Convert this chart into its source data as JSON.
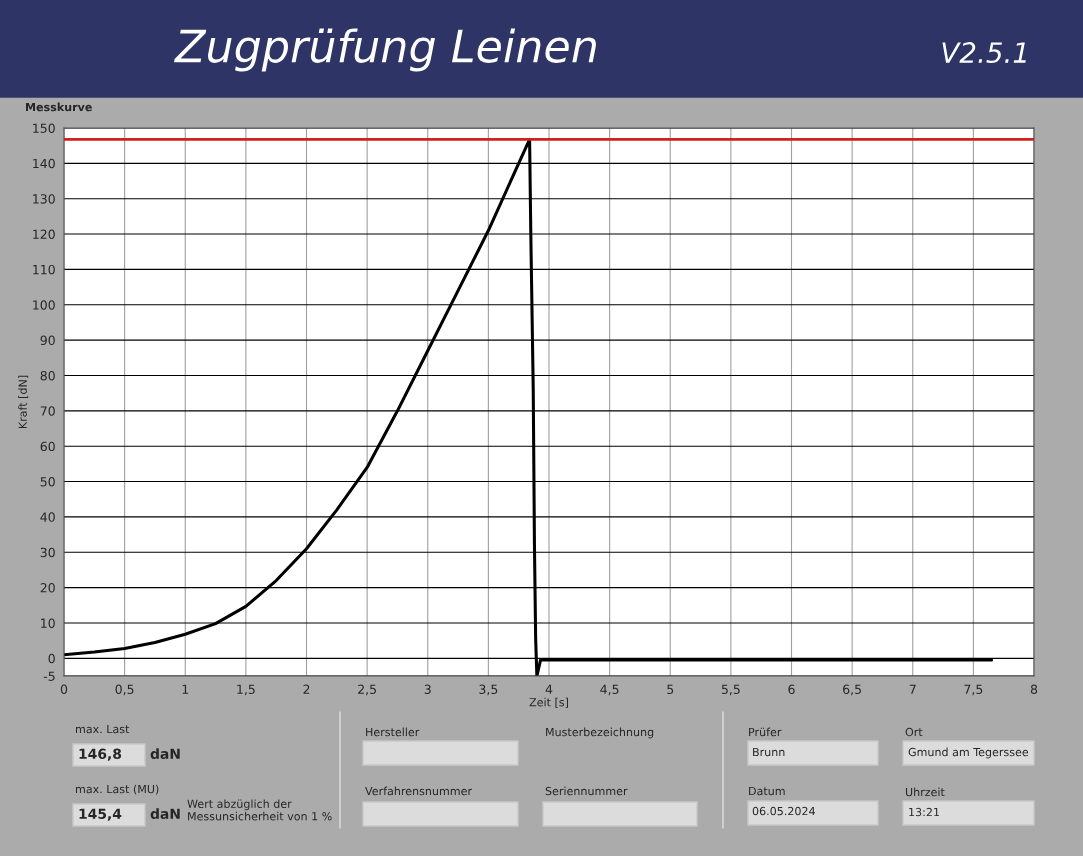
{
  "chart_data": {
    "type": "line",
    "title": "Zugprüfung Leinen",
    "subtitle": "V2.5.1",
    "xlabel": "Zeit [s]",
    "ylabel": "Kraft [dN]",
    "series": [
      {
        "color": "#000000",
        "x": [
          0,
          0.25,
          0.5,
          0.75,
          1.0,
          1.25,
          1.5,
          1.75,
          2.0,
          2.25,
          2.5,
          2.75,
          3.0,
          3.25,
          3.5,
          3.75,
          3.84,
          3.85,
          3.87,
          3.88,
          3.89,
          3.9,
          3.93,
          4.5,
          5.5,
          6.5,
          7.65
        ],
        "values": [
          1,
          1.8,
          2.8,
          4.5,
          6.8,
          9.8,
          14.7,
          22,
          31,
          42,
          54,
          70,
          87,
          104,
          121,
          140,
          146.8,
          120,
          76,
          32,
          5.5,
          -5,
          -0.5,
          -0.5,
          -0.5,
          -0.5,
          -0.5
        ]
      }
    ],
    "xlim": [
      0,
      8
    ],
    "ylim": [
      -5,
      150
    ],
    "xticks": [
      0,
      {
        "value": 0.5,
        "label": "0,5"
      },
      1,
      {
        "value": 1.5,
        "label": "1,5"
      },
      2,
      {
        "value": 2.5,
        "label": "2,5"
      },
      3,
      {
        "value": 3.5,
        "label": "3,5"
      },
      4,
      {
        "value": 4.5,
        "label": "4,5"
      },
      5,
      {
        "value": 5.5,
        "label": "5,5"
      },
      6,
      {
        "value": 6.5,
        "label": "6,5"
      },
      7,
      {
        "value": 7.5,
        "label": "7,5"
      },
      8
    ],
    "yticks": [
      -5,
      0,
      10,
      20,
      30,
      40,
      50,
      60,
      70,
      80,
      90,
      100,
      110,
      120,
      130,
      140,
      150
    ],
    "ref_lines": [
      {
        "axis": "y",
        "value": 146.8,
        "color": "#d02020"
      }
    ],
    "grid": true,
    "legend": false,
    "marker": "none",
    "line_style": "solid",
    "annotations": [
      "Messkurve",
      "max. Last",
      "146,8",
      "daN",
      "max. Last (MU)",
      "145,4",
      "daN",
      "Wert abzüglich der\nMessunsicherheit von 1 %",
      "Hersteller",
      "Musterbezeichnung",
      "Verfahrensnummer",
      "Seriennummer",
      "Prüfer",
      "Brunn",
      "Ort",
      "Gmund am Tegerssee",
      "Datum",
      "06.05.2024",
      "Uhrzeit",
      "13:21"
    ]
  }
}
